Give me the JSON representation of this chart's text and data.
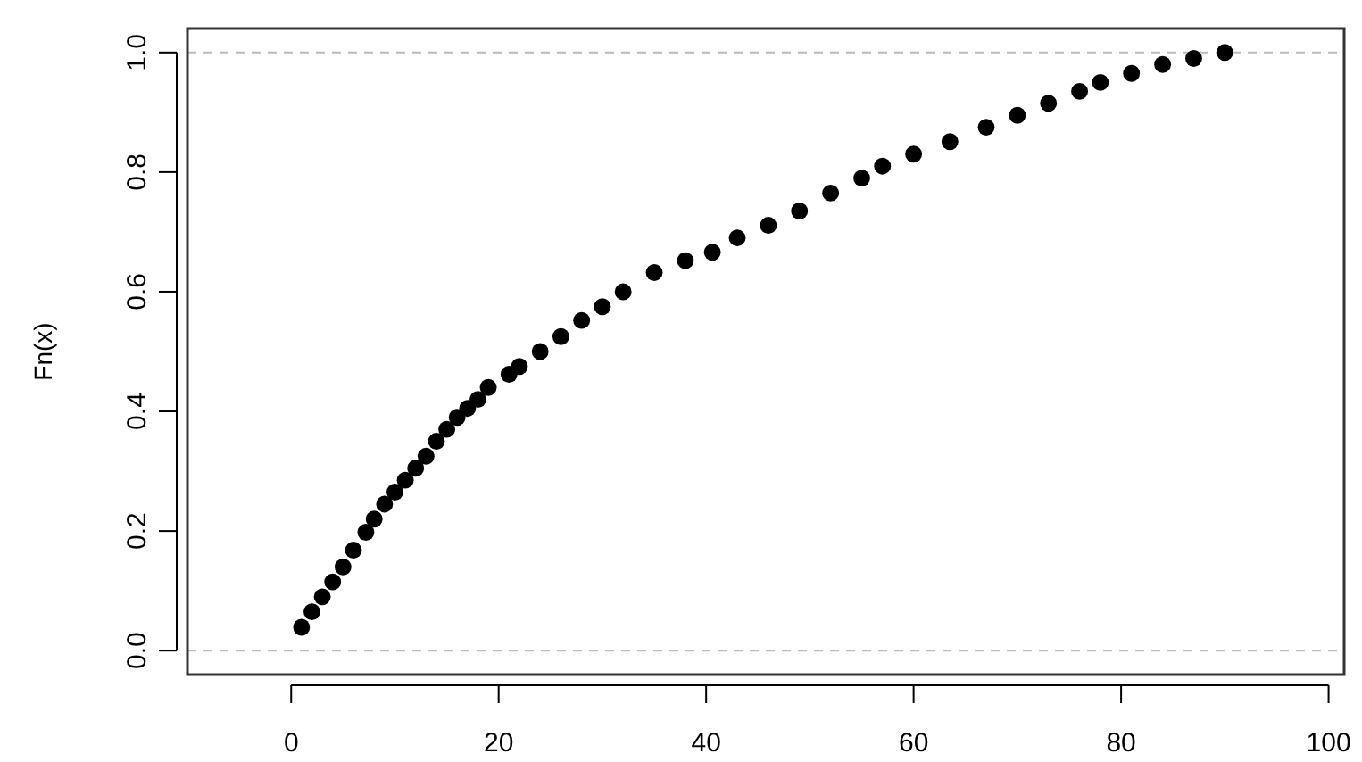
{
  "chart_data": {
    "type": "scatter",
    "ylabel": "Fn(x)",
    "marker": "circle",
    "grid": false,
    "xlim": [
      -10,
      101.5
    ],
    "xticks": [
      0,
      20,
      40,
      60,
      80,
      100
    ],
    "ylim": [
      -0.04,
      1.04
    ],
    "yticks": [
      {
        "value": 0,
        "label": "0.0"
      },
      {
        "value": 0.2,
        "label": "0.2"
      },
      {
        "value": 0.4,
        "label": "0.4"
      },
      {
        "value": 0.6,
        "label": "0.6"
      },
      {
        "value": 0.8,
        "label": "0.8"
      },
      {
        "value": 1,
        "label": "1.0"
      }
    ],
    "ref_lines": [
      {
        "axis": "y",
        "value": 0,
        "color": "#bbbbbb",
        "line_style": "dashed"
      },
      {
        "axis": "y",
        "value": 1,
        "color": "#bbbbbb",
        "line_style": "dashed"
      }
    ],
    "series": [
      {
        "color": "#000000",
        "x": [
          1,
          2,
          3,
          4,
          5,
          6,
          7.2,
          8,
          9,
          10,
          11,
          12,
          13,
          14,
          15,
          16,
          17,
          18,
          19,
          21,
          22,
          24,
          26,
          28,
          30,
          32,
          35,
          38,
          40.6,
          43,
          46,
          49,
          52,
          55,
          57,
          60,
          63.5,
          67,
          70,
          73,
          76,
          78,
          81,
          84,
          87,
          90
        ],
        "values": [
          0.039,
          0.065,
          0.09,
          0.115,
          0.14,
          0.168,
          0.198,
          0.22,
          0.245,
          0.265,
          0.285,
          0.305,
          0.325,
          0.35,
          0.37,
          0.39,
          0.405,
          0.42,
          0.44,
          0.462,
          0.475,
          0.5,
          0.525,
          0.552,
          0.575,
          0.6,
          0.632,
          0.652,
          0.666,
          0.69,
          0.711,
          0.735,
          0.765,
          0.79,
          0.81,
          0.83,
          0.851,
          0.875,
          0.895,
          0.915,
          0.935,
          0.95,
          0.965,
          0.98,
          0.99,
          1.0
        ]
      }
    ]
  }
}
